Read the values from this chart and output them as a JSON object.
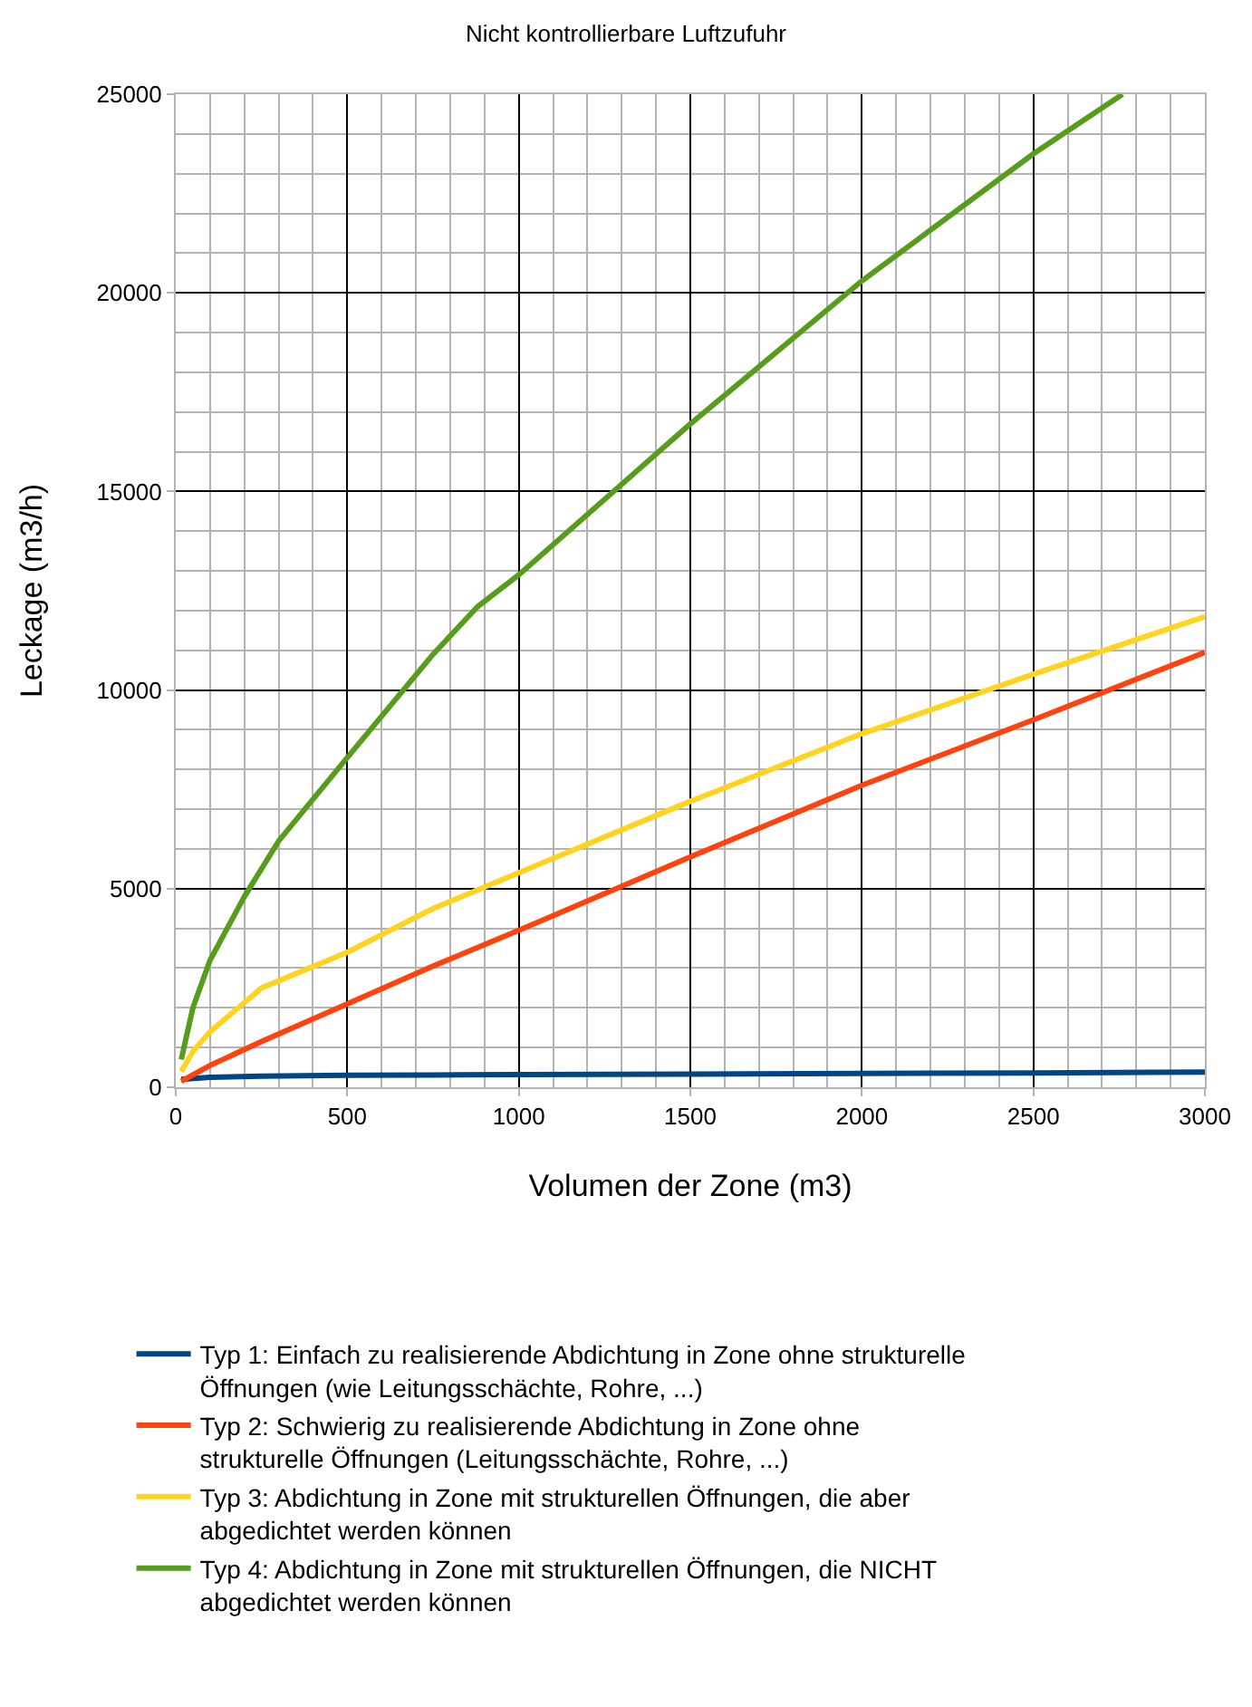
{
  "chart_data": {
    "type": "line",
    "title": "Nicht kontrollierbare Luftzufuhr",
    "xlabel": "Volumen der Zone (m3)",
    "ylabel": "Leckage (m3/h)",
    "series": [
      {
        "name": "Typ 1: Einfach zu realisierende Abdichtung in Zone ohne strukturelle Öffnungen (wie Leitungsschächte, Rohre, ...)",
        "color": "#004586",
        "x": [
          16,
          100,
          250,
          500,
          750,
          1000,
          1500,
          2000,
          2500,
          3000
        ],
        "values": [
          200,
          250,
          280,
          300,
          310,
          320,
          330,
          350,
          360,
          380
        ]
      },
      {
        "name": "Typ 2: Schwierig zu realisierende Abdichtung in Zone ohne strukturelle Öffnungen (Leitungsschächte, Rohre, ...)",
        "color": "#ff420e",
        "x": [
          16,
          100,
          250,
          500,
          750,
          1000,
          1500,
          2000,
          2500,
          3000
        ],
        "values": [
          150,
          550,
          1150,
          2100,
          3050,
          3950,
          5800,
          7600,
          9250,
          10950
        ]
      },
      {
        "name": "Typ 3: Abdichtung in Zone mit strukturellen Öffnungen, die aber abgedichtet werden können",
        "color": "#ffd320",
        "x": [
          16,
          50,
          100,
          250,
          500,
          750,
          1000,
          1500,
          2000,
          2500,
          3000
        ],
        "values": [
          400,
          900,
          1400,
          2500,
          3400,
          4500,
          5400,
          7200,
          8900,
          10400,
          11850
        ]
      },
      {
        "name": "Typ 4: Abdichtung in Zone mit strukturellen Öffnungen, die NICHT abgedichtet werden können",
        "color": "#579d1c",
        "x": [
          16,
          50,
          100,
          200,
          300,
          500,
          750,
          880,
          1000,
          1500,
          2000,
          2500,
          2760
        ],
        "values": [
          700,
          2000,
          3200,
          4800,
          6200,
          8300,
          10900,
          12100,
          12900,
          16700,
          20300,
          23500,
          25000
        ]
      }
    ],
    "xlim": [
      0,
      3000
    ],
    "xticks": [
      0,
      500,
      1000,
      1500,
      2000,
      2500,
      3000
    ],
    "ylim": [
      0,
      25000
    ],
    "yticks": [
      0,
      5000,
      10000,
      15000,
      20000,
      25000
    ],
    "grid": true,
    "legend": "bottom",
    "marker": "none",
    "line_style": "solid"
  }
}
